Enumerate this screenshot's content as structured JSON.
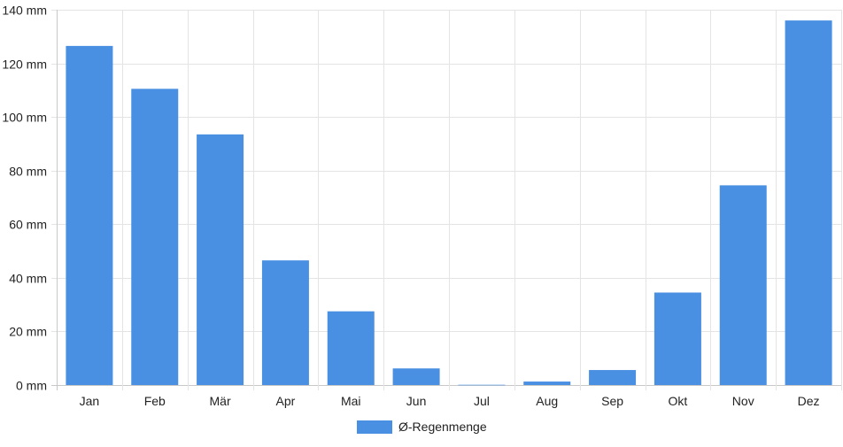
{
  "chart_data": {
    "type": "bar",
    "categories": [
      "Jan",
      "Feb",
      "Mär",
      "Apr",
      "Mai",
      "Jun",
      "Jul",
      "Aug",
      "Sep",
      "Okt",
      "Nov",
      "Dez"
    ],
    "series": [
      {
        "name": "Ø-Regenmenge",
        "values": [
          126.5,
          110.5,
          93.5,
          46.5,
          27.5,
          6.2,
          0.1,
          1.3,
          5.6,
          34.5,
          74.5,
          136.0
        ]
      }
    ],
    "unit": "mm",
    "ylim": [
      0,
      140
    ],
    "yticks": [
      0,
      20,
      40,
      60,
      80,
      100,
      120,
      140
    ],
    "ytick_labels": [
      "0 mm",
      "20 mm",
      "40 mm",
      "60 mm",
      "80 mm",
      "100 mm",
      "120 mm",
      "140 mm"
    ],
    "grid": true,
    "legend_position": "bottom",
    "colors": {
      "bar": "#4a90e2",
      "grid": "#e4e4e4",
      "axis": "#c8c8c8"
    }
  }
}
